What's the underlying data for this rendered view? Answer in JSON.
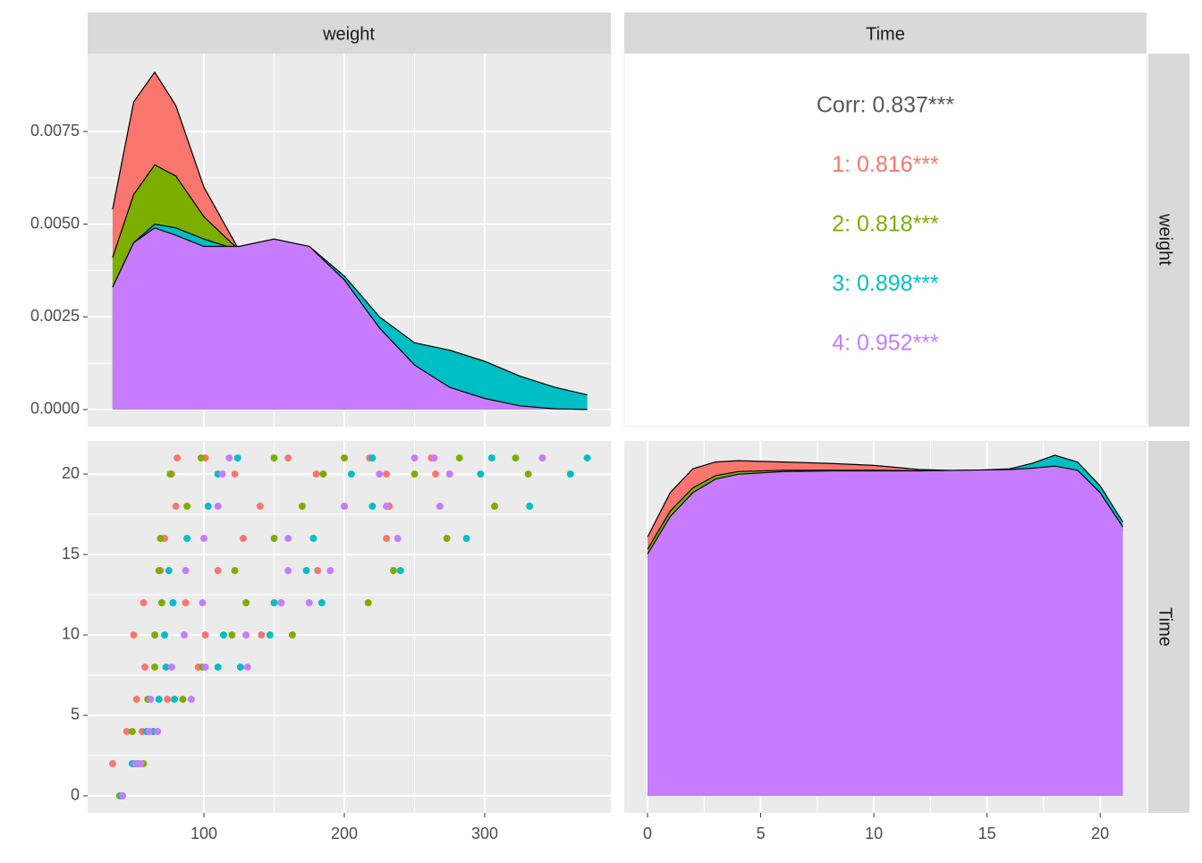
{
  "strips": {
    "top": [
      "weight",
      "Time"
    ],
    "right": [
      "weight",
      "Time"
    ]
  },
  "chart_data": [
    {
      "type": "density",
      "x": [
        35,
        50,
        65,
        80,
        100,
        125,
        150,
        175,
        200,
        225,
        250,
        275,
        300,
        325,
        350,
        373
      ],
      "series": [
        {
          "name": "1",
          "color": "#F8766D",
          "values": [
            0.0054,
            0.0083,
            0.0091,
            0.0082,
            0.006,
            0.0043,
            0.0042,
            0.0038,
            0.003,
            0.002,
            0.0012,
            0.0006,
            0.0003,
            0.0001,
            3e-05,
            0
          ]
        },
        {
          "name": "2",
          "color": "#7CAE00",
          "values": [
            0.0041,
            0.0058,
            0.0066,
            0.0063,
            0.0052,
            0.0043,
            0.0042,
            0.004,
            0.0032,
            0.0022,
            0.0014,
            0.0008,
            0.0004,
            0.0002,
            0.0001,
            0
          ]
        },
        {
          "name": "3",
          "color": "#00BFC4",
          "values": [
            0.0033,
            0.0045,
            0.005,
            0.0049,
            0.0046,
            0.0043,
            0.0045,
            0.0044,
            0.0036,
            0.0025,
            0.0018,
            0.0016,
            0.0013,
            0.0009,
            0.0006,
            0.0004
          ]
        },
        {
          "name": "4",
          "color": "#C77CFF",
          "values": [
            0.0033,
            0.0045,
            0.0049,
            0.0047,
            0.0044,
            0.0044,
            0.0046,
            0.0044,
            0.0035,
            0.0022,
            0.0012,
            0.0006,
            0.0003,
            0.0001,
            2e-05,
            0
          ]
        }
      ],
      "xlim": [
        17.2,
        389.8
      ],
      "xticks": [
        100,
        200,
        300
      ],
      "ylim": [
        -0.00046,
        0.0096
      ],
      "yticks": [
        {
          "value": 0,
          "label": "0.0000"
        },
        {
          "value": 0.0025,
          "label": "0.0025"
        },
        {
          "value": 0.005,
          "label": "0.0050"
        },
        {
          "value": 0.0075,
          "label": "0.0075"
        }
      ]
    },
    {
      "type": "text",
      "lines": [
        {
          "text": "Corr: 0.837***",
          "color": "#595959"
        },
        {
          "text": "1: 0.816***",
          "color": "#F8766D"
        },
        {
          "text": "2: 0.818***",
          "color": "#7CAE00"
        },
        {
          "text": "3: 0.898***",
          "color": "#00BFC4"
        },
        {
          "text": "4: 0.952***",
          "color": "#C77CFF"
        }
      ]
    },
    {
      "type": "scatter",
      "series": [
        {
          "name": "1",
          "color": "#F8766D",
          "x": [
            41,
            42,
            35,
            51,
            45,
            56,
            52,
            74,
            58,
            96,
            50,
            101,
            141,
            57,
            87,
            155,
            69,
            110,
            181,
            72,
            128,
            230,
            80,
            140,
            200,
            232,
            77,
            122,
            180,
            230,
            265,
            81,
            101,
            160,
            218,
            262
          ],
          "y": [
            0,
            0,
            2,
            2,
            4,
            4,
            6,
            6,
            8,
            8,
            10,
            10,
            10,
            12,
            12,
            12,
            14,
            14,
            14,
            16,
            16,
            16,
            18,
            18,
            18,
            18,
            20,
            20,
            20,
            20,
            20,
            21,
            21,
            21,
            21,
            21
          ]
        },
        {
          "name": "2",
          "color": "#7CAE00",
          "x": [
            40,
            50,
            57,
            49,
            64,
            60,
            85,
            65,
            99,
            65,
            120,
            163,
            70,
            130,
            217,
            68,
            122,
            235,
            69,
            150,
            273,
            88,
            170,
            307,
            76,
            185,
            250,
            331,
            98,
            150,
            200,
            282,
            322
          ],
          "y": [
            0,
            2,
            2,
            4,
            4,
            6,
            6,
            8,
            8,
            10,
            10,
            10,
            12,
            12,
            12,
            14,
            14,
            14,
            16,
            16,
            16,
            18,
            18,
            18,
            20,
            20,
            20,
            20,
            21,
            21,
            21,
            21,
            21
          ]
        },
        {
          "name": "3",
          "color": "#00BFC4",
          "x": [
            41,
            49,
            53,
            59,
            64,
            68,
            79,
            73,
            110,
            126,
            72,
            114,
            147,
            78,
            150,
            184,
            75,
            173,
            240,
            88,
            178,
            287,
            103,
            220,
            332,
            110,
            205,
            297,
            361,
            124,
            220,
            305,
            373
          ],
          "y": [
            0,
            2,
            2,
            4,
            4,
            6,
            6,
            8,
            8,
            8,
            10,
            10,
            10,
            12,
            12,
            12,
            14,
            14,
            14,
            16,
            16,
            16,
            18,
            18,
            18,
            20,
            20,
            20,
            20,
            21,
            21,
            21,
            21
          ]
        },
        {
          "name": "4",
          "color": "#C77CFF",
          "x": [
            42,
            51,
            55,
            61,
            67,
            62,
            91,
            77,
            101,
            131,
            86,
            130,
            99,
            155,
            175,
            87,
            160,
            190,
            100,
            160,
            238,
            110,
            200,
            230,
            268,
            113,
            225,
            275,
            118,
            250,
            264,
            341
          ],
          "y": [
            0,
            2,
            2,
            4,
            4,
            6,
            6,
            8,
            8,
            8,
            10,
            10,
            12,
            12,
            12,
            14,
            14,
            14,
            16,
            16,
            16,
            18,
            18,
            18,
            18,
            20,
            20,
            20,
            21,
            21,
            21,
            21
          ]
        }
      ],
      "xlim": [
        17.2,
        389.8
      ],
      "xticks": [
        100,
        200,
        300
      ],
      "ylim": [
        -1.06,
        22.06
      ],
      "yticks": [
        0,
        5,
        10,
        15,
        20
      ]
    },
    {
      "type": "density",
      "x": [
        0,
        1,
        2,
        3,
        4,
        6,
        8,
        10,
        12,
        14,
        16,
        17,
        18,
        19,
        20,
        21
      ],
      "series": [
        {
          "name": "1",
          "color": "#F8766D",
          "values": [
            0.038,
            0.0445,
            0.048,
            0.049,
            0.0492,
            0.049,
            0.0488,
            0.0485,
            0.0479,
            0.0477,
            0.0475,
            0.0476,
            0.0478,
            0.047,
            0.044,
            0.039
          ]
        },
        {
          "name": "2",
          "color": "#7CAE00",
          "values": [
            0.0362,
            0.0418,
            0.0452,
            0.047,
            0.0476,
            0.0478,
            0.0478,
            0.0478,
            0.0477,
            0.0478,
            0.0478,
            0.048,
            0.0483,
            0.0477,
            0.0444,
            0.0394
          ]
        },
        {
          "name": "3",
          "color": "#00BFC4",
          "values": [
            0.035,
            0.0405,
            0.044,
            0.046,
            0.0468,
            0.0473,
            0.0475,
            0.0476,
            0.0476,
            0.0477,
            0.048,
            0.0488,
            0.05,
            0.049,
            0.0455,
            0.0402
          ]
        },
        {
          "name": "4",
          "color": "#C77CFF",
          "values": [
            0.0355,
            0.041,
            0.0445,
            0.0465,
            0.0472,
            0.0476,
            0.0477,
            0.0477,
            0.0477,
            0.0478,
            0.0479,
            0.0481,
            0.0484,
            0.0478,
            0.0445,
            0.0395
          ]
        }
      ],
      "xlim": [
        -1.03,
        22.05
      ],
      "xticks": [
        0,
        5,
        10,
        15,
        20
      ],
      "ylim": [
        -0.0025,
        0.0521
      ]
    }
  ]
}
